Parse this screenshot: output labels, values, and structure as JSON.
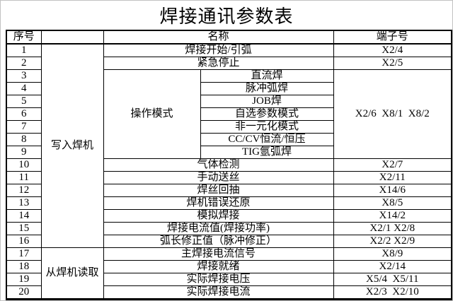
{
  "title": "焊接通讯参数表",
  "table": {
    "headers": {
      "no": "序号",
      "group": "",
      "name": "名称",
      "terminal": "端子号"
    },
    "write_group_label": "写入焊机",
    "read_group_label": "从焊机读取",
    "operation_mode_label": "操作模式",
    "operation_mode_terminal": "X2/6  X8/1  X8/2",
    "rows": [
      {
        "no": "1",
        "name": "焊接开始/引弧",
        "terminal": "X2/4"
      },
      {
        "no": "2",
        "name": "紧急停止",
        "terminal": "X2/5"
      },
      {
        "no": "3",
        "name": "直流焊"
      },
      {
        "no": "4",
        "name": "脉冲弧焊"
      },
      {
        "no": "5",
        "name": "JOB焊"
      },
      {
        "no": "6",
        "name": "自选参数模式"
      },
      {
        "no": "7",
        "name": "非一元化模式"
      },
      {
        "no": "8",
        "name": "CC/CV恒流/恒压"
      },
      {
        "no": "9",
        "name": "TIG氩弧焊"
      },
      {
        "no": "10",
        "name": "气体检测",
        "terminal": "X2/7"
      },
      {
        "no": "11",
        "name": "手动送丝",
        "terminal": "X2/11"
      },
      {
        "no": "12",
        "name": "焊丝回抽",
        "terminal": "X14/6"
      },
      {
        "no": "13",
        "name": "焊机错误还原",
        "terminal": "X8/5"
      },
      {
        "no": "14",
        "name": "模拟焊接",
        "terminal": "X14/2"
      },
      {
        "no": "15",
        "name": "焊接电流值(焊接功率)",
        "terminal": "X2/1 X2/8"
      },
      {
        "no": "16",
        "name": "弧长修正值（脉冲修正）",
        "terminal": "X2/2 X2/9"
      },
      {
        "no": "17",
        "name": "主焊接电流信号",
        "terminal": "X8/9"
      },
      {
        "no": "18",
        "name": "焊接就绪",
        "terminal": "X2/14"
      },
      {
        "no": "19",
        "name": "实际焊接电压",
        "terminal": "X5/4  X5/11"
      },
      {
        "no": "20",
        "name": "实际焊接电流",
        "terminal": "X2/3  X2/10"
      }
    ]
  }
}
